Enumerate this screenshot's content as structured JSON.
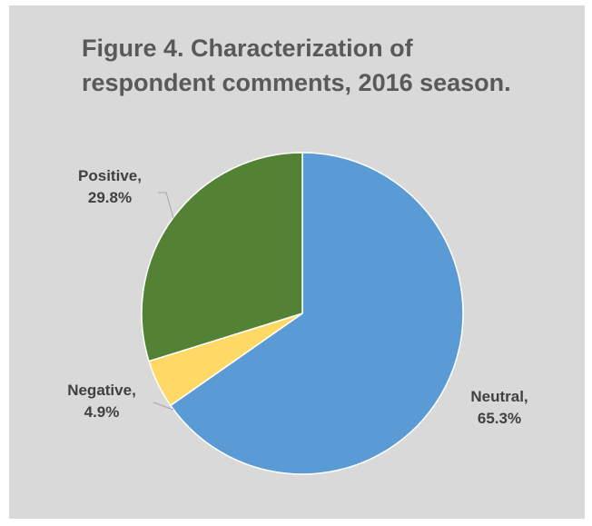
{
  "chart": {
    "title_line1": "Figure 4. Characterization of",
    "title_line2": "respondent comments, 2016 season."
  },
  "chart_data": {
    "type": "pie",
    "title": "Figure 4. Characterization of respondent comments, 2016 season.",
    "start_angle_deg": 0,
    "direction": "clockwise",
    "slices": [
      {
        "name": "Neutral",
        "value": 65.3,
        "label_name": "Neutral,",
        "label_value": "65.3%",
        "color": "#5b9bd5"
      },
      {
        "name": "Negative",
        "value": 4.9,
        "label_name": "Negative,",
        "label_value": "4.9%",
        "color": "#ffd966"
      },
      {
        "name": "Positive",
        "value": 29.8,
        "label_name": "Positive,",
        "label_value": "29.8%",
        "color": "#548235"
      }
    ],
    "legend": "none"
  }
}
